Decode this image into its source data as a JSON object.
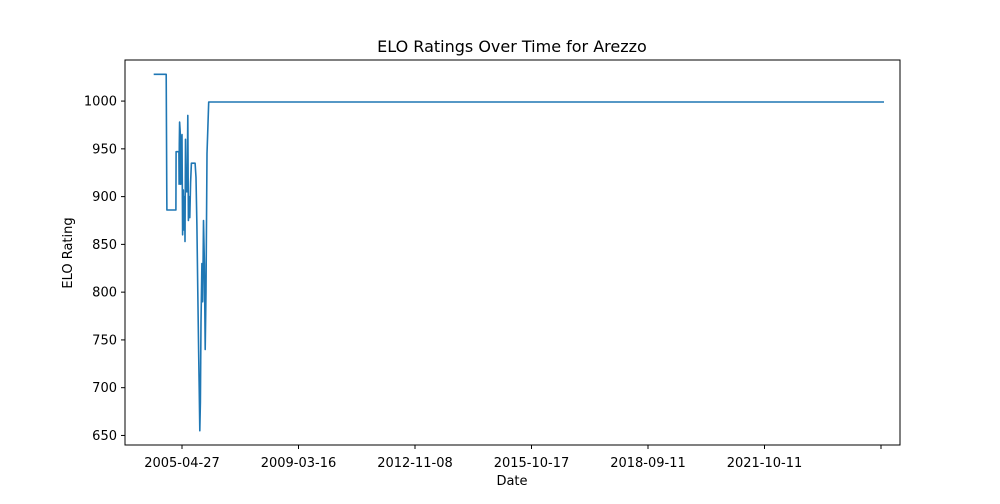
{
  "chart_data": {
    "type": "line",
    "title": "ELO Ratings Over Time for Arezzo",
    "xlabel": "Date",
    "ylabel": "ELO Rating",
    "x_ticks": [
      "2005-04-27",
      "2009-03-16",
      "2012-11-08",
      "2015-10-17",
      "2018-09-11",
      "2021-10-11",
      ""
    ],
    "y_ticks": [
      650,
      700,
      750,
      800,
      850,
      900,
      950,
      1000
    ],
    "ylim": [
      640,
      1043
    ],
    "xlim": [
      "2004-04-20",
      "2024-08-15"
    ],
    "grid": false,
    "legend": "none",
    "series": [
      {
        "color": "#1f77b4",
        "points": [
          [
            "2005-01-20",
            1028
          ],
          [
            "2005-05-20",
            1028
          ],
          [
            "2005-05-22",
            965
          ],
          [
            "2005-05-25",
            900
          ],
          [
            "2005-05-26",
            886
          ],
          [
            "2005-08-20",
            886
          ],
          [
            "2005-08-22",
            947
          ],
          [
            "2005-09-18",
            947
          ],
          [
            "2005-09-20",
            913
          ],
          [
            "2005-09-22",
            955
          ],
          [
            "2005-09-25",
            978
          ],
          [
            "2005-10-01",
            968
          ],
          [
            "2005-10-05",
            913
          ],
          [
            "2005-10-12",
            960
          ],
          [
            "2005-10-18",
            965
          ],
          [
            "2005-10-24",
            860
          ],
          [
            "2005-10-30",
            907
          ],
          [
            "2005-11-06",
            865
          ],
          [
            "2005-11-12",
            900
          ],
          [
            "2005-11-16",
            853
          ],
          [
            "2005-11-20",
            960
          ],
          [
            "2005-11-24",
            905
          ],
          [
            "2005-12-01",
            925
          ],
          [
            "2005-12-06",
            905
          ],
          [
            "2005-12-12",
            985
          ],
          [
            "2005-12-18",
            875
          ],
          [
            "2005-12-24",
            900
          ],
          [
            "2006-01-01",
            878
          ],
          [
            "2006-01-08",
            915
          ],
          [
            "2006-01-16",
            935
          ],
          [
            "2006-02-20",
            935
          ],
          [
            "2006-03-01",
            920
          ],
          [
            "2006-03-10",
            870
          ],
          [
            "2006-03-18",
            800
          ],
          [
            "2006-03-26",
            740
          ],
          [
            "2006-04-01",
            700
          ],
          [
            "2006-04-06",
            655
          ],
          [
            "2006-04-12",
            685
          ],
          [
            "2006-04-18",
            768
          ],
          [
            "2006-04-26",
            830
          ],
          [
            "2006-05-04",
            790
          ],
          [
            "2006-05-12",
            875
          ],
          [
            "2006-05-20",
            830
          ],
          [
            "2006-05-28",
            740
          ],
          [
            "2006-06-05",
            800
          ],
          [
            "2006-06-14",
            945
          ],
          [
            "2006-06-22",
            970
          ],
          [
            "2006-07-01",
            999
          ],
          [
            "2024-03-15",
            999
          ]
        ]
      }
    ]
  }
}
